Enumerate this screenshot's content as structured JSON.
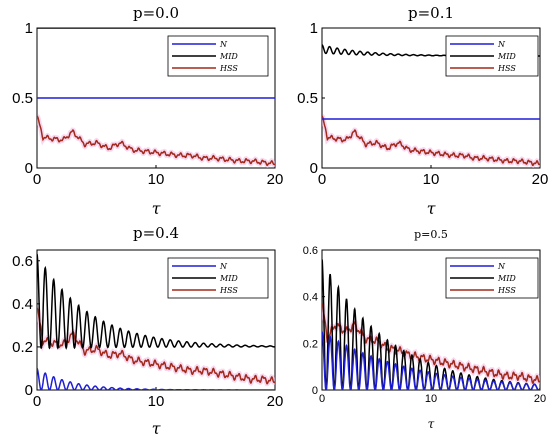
{
  "colors": {
    "N": "#1f1fd6",
    "MID": "#000000",
    "HSS": "#a0291a",
    "HSS_shadow": "#f2b8e4"
  },
  "chart_data": [
    {
      "type": "line",
      "title": "p=0.0",
      "xlabel": "τ",
      "xlim": [
        0,
        20
      ],
      "ylim": [
        0,
        1
      ],
      "x_ticks": [
        "0",
        "10",
        "20"
      ],
      "y_ticks": [
        "0",
        "0.5",
        "1"
      ],
      "legend": {
        "placement": "top-right",
        "entries": [
          "N",
          "MID",
          "HSS"
        ]
      },
      "series": [
        {
          "name": "N",
          "x": [
            0,
            20
          ],
          "values": [
            0.5,
            0.5
          ]
        },
        {
          "name": "MID",
          "x": [
            0,
            20
          ],
          "values": [
            1.0,
            1.0
          ]
        },
        {
          "name": "HSS",
          "x": [
            0,
            0.5,
            1.2,
            2.2,
            3.0,
            4.0,
            5.0,
            6.0,
            7.0,
            8.0,
            9.0,
            10,
            11,
            12,
            13,
            14,
            15,
            16,
            17,
            18,
            19,
            20
          ],
          "values": [
            0.37,
            0.22,
            0.21,
            0.2,
            0.26,
            0.17,
            0.18,
            0.14,
            0.18,
            0.13,
            0.12,
            0.11,
            0.1,
            0.09,
            0.09,
            0.07,
            0.07,
            0.06,
            0.05,
            0.05,
            0.04,
            0.03
          ]
        }
      ]
    },
    {
      "type": "line",
      "title": "p=0.1",
      "xlabel": "τ",
      "xlim": [
        0,
        20
      ],
      "ylim": [
        0,
        1
      ],
      "x_ticks": [
        "0",
        "10",
        "20"
      ],
      "y_ticks": [
        "0",
        "0.5",
        "1"
      ],
      "legend": {
        "placement": "top-right",
        "entries": [
          "N",
          "MID",
          "HSS"
        ]
      },
      "series": [
        {
          "name": "N",
          "x": [
            0,
            20
          ],
          "values": [
            0.35,
            0.35
          ]
        },
        {
          "name": "MID",
          "x": [
            0,
            20
          ],
          "values": [
            0.8,
            0.8
          ],
          "oscillation": {
            "start": 0.9,
            "decay": 0.25,
            "period": 0.7
          }
        },
        {
          "name": "HSS",
          "x": [
            0,
            0.5,
            1.2,
            2.2,
            3.0,
            4.0,
            5.0,
            6.0,
            7.0,
            8.0,
            9.0,
            10,
            11,
            12,
            13,
            14,
            15,
            16,
            17,
            18,
            19,
            20
          ],
          "values": [
            0.37,
            0.22,
            0.21,
            0.2,
            0.26,
            0.17,
            0.18,
            0.14,
            0.18,
            0.13,
            0.12,
            0.11,
            0.1,
            0.09,
            0.09,
            0.07,
            0.07,
            0.06,
            0.05,
            0.05,
            0.04,
            0.03
          ]
        }
      ]
    },
    {
      "type": "line",
      "title": "p=0.4",
      "xlabel": "τ",
      "xlim": [
        0,
        20
      ],
      "ylim": [
        0,
        0.65
      ],
      "x_ticks": [
        "0",
        "10",
        "20"
      ],
      "y_ticks": [
        "0",
        "0.2",
        "0.4",
        "0.6"
      ],
      "legend": {
        "placement": "top-right",
        "entries": [
          "N",
          "MID",
          "HSS"
        ]
      },
      "series": [
        {
          "name": "N",
          "x": [
            0,
            6.5,
            20
          ],
          "values": [
            0.1,
            0.0,
            0.0
          ],
          "oscillation": {
            "amplitude": 0.1,
            "period": 0.7,
            "decay": 0.35,
            "floor": 0.0
          }
        },
        {
          "name": "MID",
          "x": [
            0,
            20
          ],
          "values": [
            0.64,
            0.2
          ],
          "oscillation": {
            "amplitude": 0.44,
            "period": 0.7,
            "decay": 0.23,
            "center": 0.2
          }
        },
        {
          "name": "HSS",
          "x": [
            0,
            0.5,
            1.2,
            2.2,
            3.0,
            4.0,
            5.0,
            6.0,
            7.0,
            8.0,
            9.0,
            10,
            11,
            12,
            13,
            14,
            15,
            16,
            17,
            18,
            19,
            20
          ],
          "values": [
            0.38,
            0.23,
            0.22,
            0.21,
            0.26,
            0.18,
            0.19,
            0.16,
            0.17,
            0.14,
            0.13,
            0.12,
            0.11,
            0.1,
            0.09,
            0.09,
            0.08,
            0.07,
            0.06,
            0.05,
            0.05,
            0.04
          ]
        }
      ]
    },
    {
      "type": "line",
      "title": "p=0.5",
      "xlabel": "τ",
      "xlim": [
        0,
        20
      ],
      "ylim": [
        0,
        0.6
      ],
      "x_ticks": [
        "0",
        "10",
        "20"
      ],
      "y_ticks": [
        "0",
        "0.2",
        "0.4",
        "0.6"
      ],
      "legend": {
        "placement": "top-right",
        "entries": [
          "N",
          "MID",
          "HSS"
        ]
      },
      "series": [
        {
          "name": "N",
          "x": [
            0,
            20
          ],
          "values": [
            0.25,
            0.02
          ],
          "oscillation": {
            "amplitude": 0.25,
            "period": 0.75,
            "decay": 0.12,
            "floor": 0.0
          }
        },
        {
          "name": "MID",
          "x": [
            0,
            20
          ],
          "values": [
            0.56,
            0.02
          ],
          "oscillation": {
            "amplitude": 0.56,
            "period": 0.75,
            "decay": 0.16,
            "floor": 0.0
          }
        },
        {
          "name": "HSS",
          "x": [
            0,
            0.5,
            1.2,
            2.2,
            3.0,
            4.0,
            5.0,
            6.0,
            7.0,
            8.0,
            9.0,
            10,
            11,
            12,
            13,
            14,
            15,
            16,
            17,
            18,
            19,
            20
          ],
          "values": [
            0.37,
            0.22,
            0.28,
            0.25,
            0.28,
            0.22,
            0.21,
            0.18,
            0.17,
            0.15,
            0.14,
            0.13,
            0.12,
            0.11,
            0.1,
            0.09,
            0.08,
            0.07,
            0.06,
            0.06,
            0.05,
            0.04
          ]
        }
      ]
    }
  ]
}
